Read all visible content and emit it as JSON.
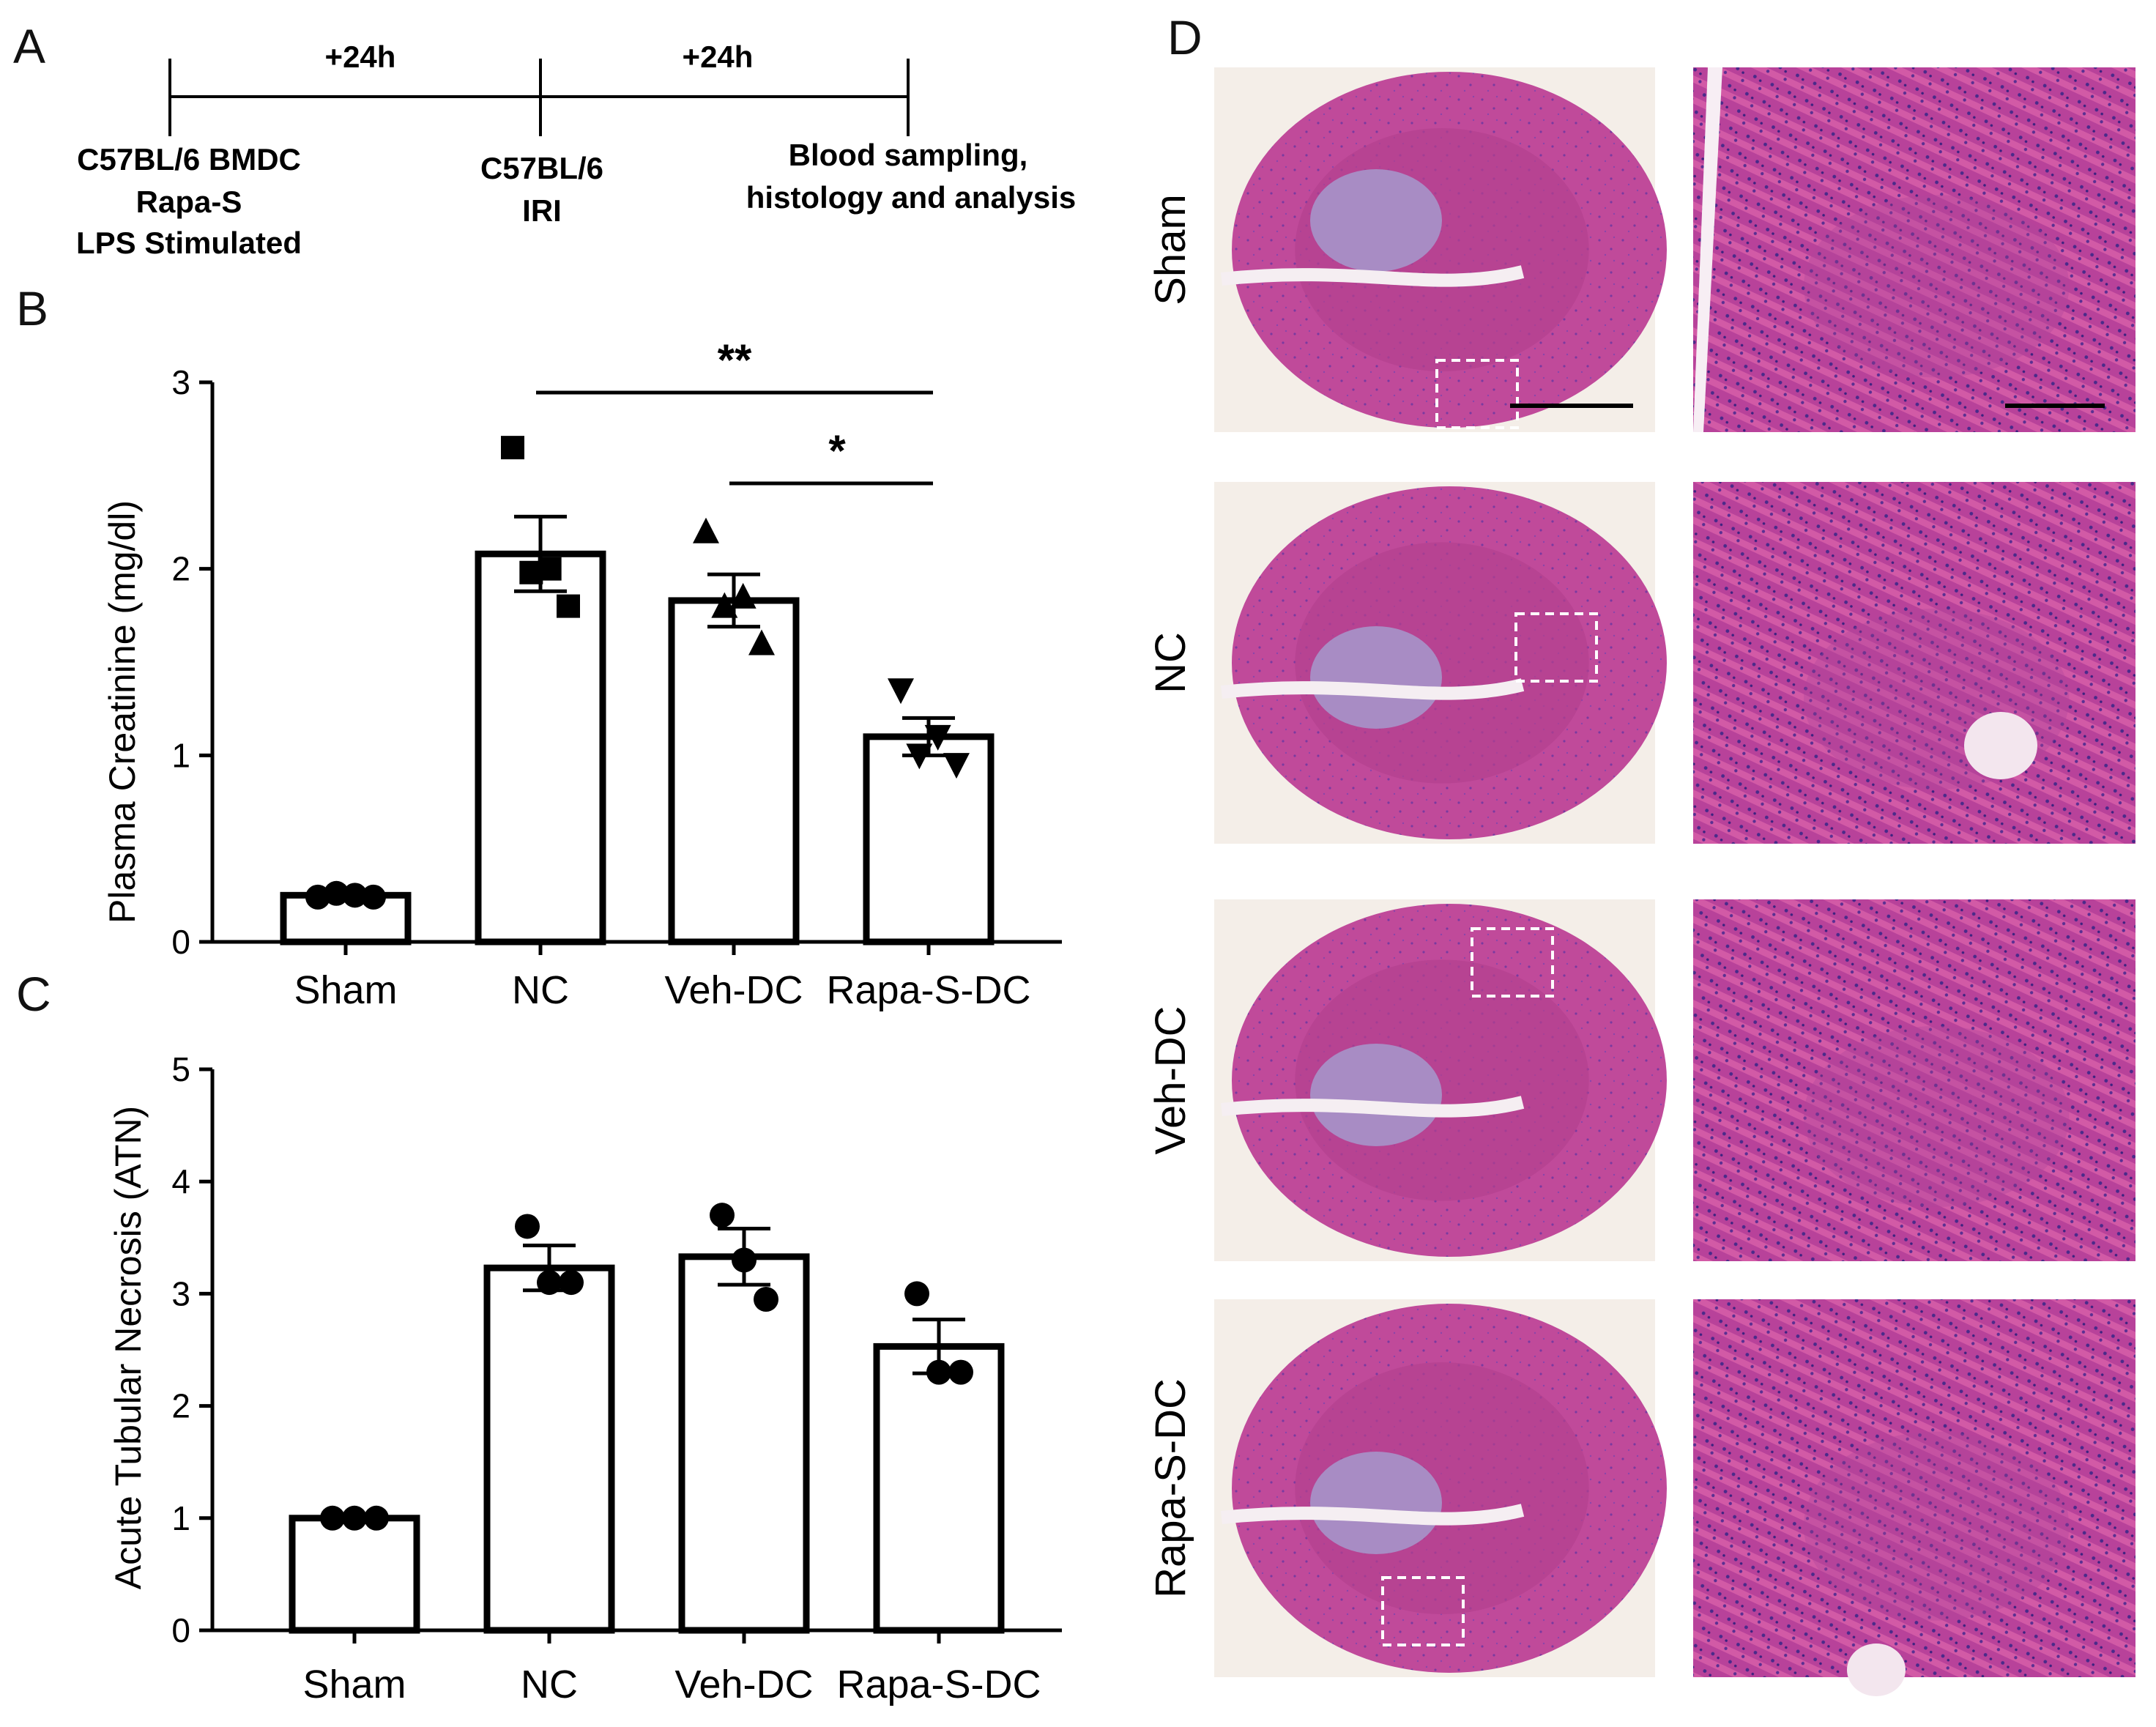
{
  "panels": {
    "a": "A",
    "b": "B",
    "c": "C",
    "d": "D"
  },
  "timeline": {
    "interval1": "+24h",
    "interval2": "+24h",
    "step1": [
      "C57BL/6 BMDC",
      "Rapa-S",
      "LPS Stimulated"
    ],
    "step2": [
      "C57BL/6",
      "IRI"
    ],
    "step3": [
      "Blood sampling,",
      "histology and analysis"
    ]
  },
  "chart_data": [
    {
      "type": "bar",
      "panel": "B",
      "ylabel": "Plasma Creatinine  (mg/dl)",
      "xlabel": "",
      "ylim": [
        0,
        3
      ],
      "yticks": [
        0,
        1,
        2,
        3
      ],
      "categories": [
        "Sham",
        "NC",
        "Veh-DC",
        "Rapa-S-DC"
      ],
      "values": [
        0.25,
        2.08,
        1.83,
        1.1
      ],
      "sem": [
        0.02,
        0.2,
        0.14,
        0.1
      ],
      "points": [
        [
          0.24,
          0.26,
          0.25,
          0.24
        ],
        [
          2.65,
          1.98,
          2.0,
          1.8
        ],
        [
          2.2,
          1.8,
          1.85,
          1.6
        ],
        [
          1.35,
          1.0,
          1.1,
          0.95
        ]
      ],
      "markers": [
        "circle",
        "square",
        "triangle-up",
        "triangle-down"
      ],
      "significance": [
        {
          "from": "NC",
          "to": "Rapa-S-DC",
          "label": "**"
        },
        {
          "from": "Veh-DC",
          "to": "Rapa-S-DC",
          "label": "*"
        }
      ]
    },
    {
      "type": "bar",
      "panel": "C",
      "ylabel": "Acute Tubular Necrosis  (ATN)",
      "xlabel": "",
      "ylim": [
        0,
        5
      ],
      "yticks": [
        0,
        1,
        2,
        3,
        4,
        5
      ],
      "categories": [
        "Sham",
        "NC",
        "Veh-DC",
        "Rapa-S-DC"
      ],
      "values": [
        1.0,
        3.23,
        3.33,
        2.53
      ],
      "sem": [
        0.0,
        0.2,
        0.25,
        0.24
      ],
      "points": [
        [
          1.0,
          1.0,
          1.0
        ],
        [
          3.6,
          3.1,
          3.1
        ],
        [
          3.7,
          3.3,
          2.95
        ],
        [
          3.0,
          2.3,
          2.3
        ]
      ],
      "markers": [
        "circle",
        "circle",
        "circle",
        "circle"
      ]
    }
  ],
  "histology": {
    "rows": [
      "Sham",
      "NC",
      "Veh-DC",
      "Rapa-S-DC"
    ],
    "tissue_color": "#c04a9a",
    "medulla_color": "#a88cc4",
    "zoom_color": "#b0459a"
  }
}
